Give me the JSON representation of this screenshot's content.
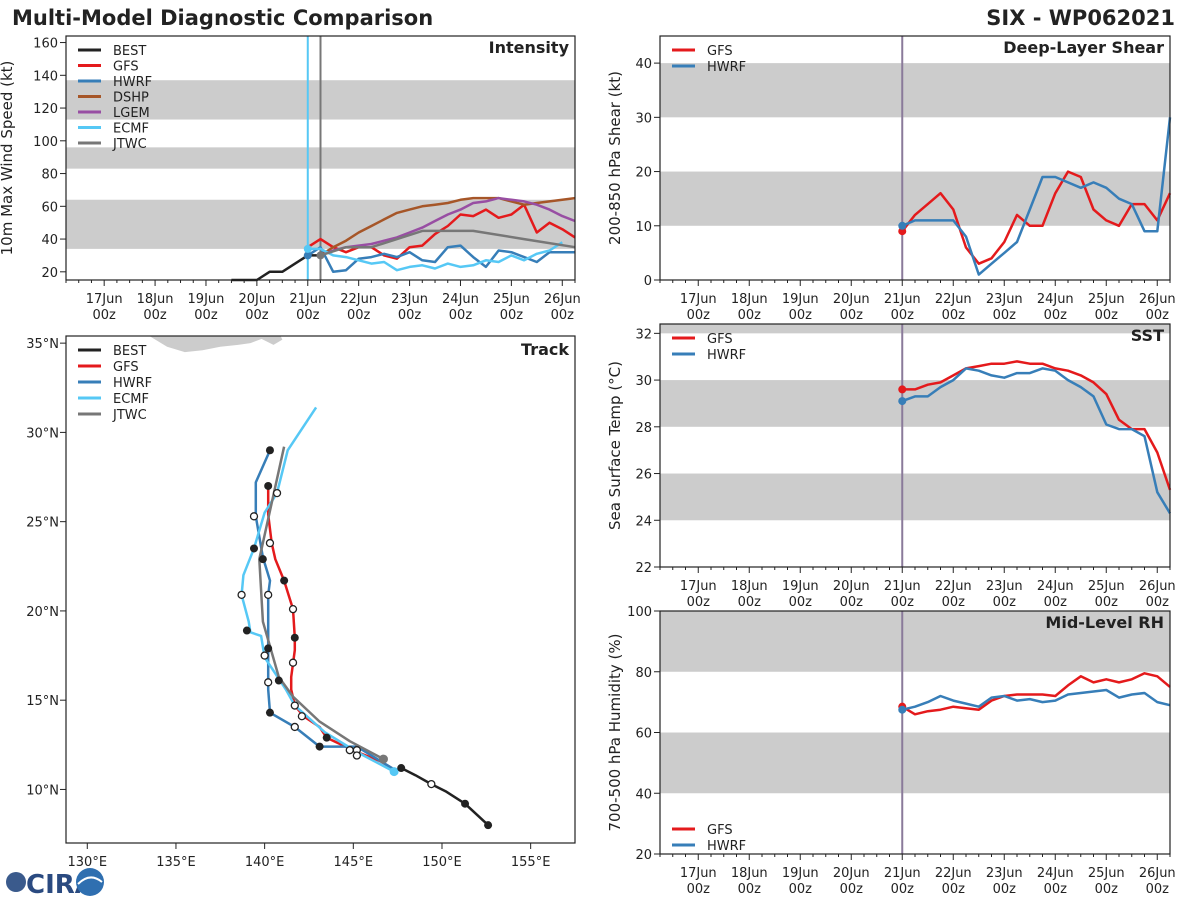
{
  "header": {
    "title": "Multi-Model Diagnostic Comparison",
    "storm": "SIX - WP062021"
  },
  "colors": {
    "BEST": "#222222",
    "GFS": "#e41a1c",
    "HWRF": "#377eb8",
    "DSHP": "#a65628",
    "LGEM": "#984ea3",
    "ECMF": "#56c8f5",
    "JTWC": "#777777",
    "band": "#cccccc",
    "init_line": "#8a7a9a"
  },
  "logo": {
    "text": "CIRA"
  },
  "chart_data": [
    {
      "id": "intensity",
      "type": "line",
      "title": "Intensity",
      "ylabel": "10m Max Wind Speed (kt)",
      "ylim": [
        15,
        164
      ],
      "yticks": [
        20,
        40,
        60,
        80,
        100,
        120,
        140,
        160
      ],
      "xlim": [
        "16Jun 06z",
        "26Jun 06z"
      ],
      "xticks": [
        "17Jun 00z",
        "18Jun 00z",
        "19Jun 00z",
        "20Jun 00z",
        "21Jun 00z",
        "22Jun 00z",
        "23Jun 00z",
        "24Jun 00z",
        "25Jun 00z",
        "26Jun 00z"
      ],
      "bands": [
        [
          34,
          64
        ],
        [
          83,
          96
        ],
        [
          113,
          137
        ]
      ],
      "vlines": [
        {
          "x": "21Jun 00z",
          "color": "ECMF"
        },
        {
          "x": "21Jun 06z",
          "color": "JTWC"
        }
      ],
      "legend": "top-left",
      "series": [
        {
          "name": "BEST",
          "x": [
            "19Jun 12z",
            "19Jun 18z",
            "20Jun 00z",
            "20Jun 06z",
            "20Jun 12z",
            "20Jun 18z",
            "21Jun 00z",
            "21Jun 06z"
          ],
          "values": [
            15,
            15,
            15,
            20,
            20,
            25,
            30,
            30
          ]
        },
        {
          "name": "GFS",
          "x": "forecast",
          "values": [
            35,
            40,
            35,
            32,
            35,
            35,
            30,
            28,
            35,
            36,
            43,
            48,
            55,
            54,
            58,
            53,
            55,
            61,
            44,
            50,
            46,
            41
          ]
        },
        {
          "name": "HWRF",
          "x": "forecast",
          "values": [
            30,
            35,
            20,
            21,
            28,
            29,
            31,
            29,
            32,
            27,
            26,
            35,
            36,
            29,
            23,
            33,
            32,
            29,
            26,
            32,
            32,
            32
          ],
          "start_marker": true
        },
        {
          "name": "DSHP",
          "x": "forecast_from_06",
          "values": [
            30,
            35,
            39,
            44,
            48,
            52,
            56,
            58,
            60,
            61,
            62,
            64,
            65,
            65,
            65,
            63,
            61,
            62,
            63,
            64,
            65
          ]
        },
        {
          "name": "LGEM",
          "x": "forecast_from_06",
          "values": [
            30,
            33,
            35,
            36,
            37,
            39,
            41,
            44,
            47,
            51,
            55,
            58,
            62,
            63,
            65,
            64,
            63,
            61,
            58,
            54,
            51
          ]
        },
        {
          "name": "ECMF",
          "x": "forecast",
          "values": [
            34,
            34,
            30,
            29,
            27,
            25,
            26,
            21,
            23,
            24,
            22,
            25,
            23,
            24,
            27,
            26,
            30,
            27,
            31,
            33,
            38
          ],
          "start_marker": true
        },
        {
          "name": "JTWC",
          "x": [
            "21Jun 06z",
            "21Jun 18z",
            "22Jun 06z",
            "23Jun 06z",
            "24Jun 06z",
            "25Jun 06z",
            "26Jun 06z"
          ],
          "values": [
            30,
            35,
            35,
            45,
            45,
            40,
            35
          ],
          "start_marker": true
        }
      ]
    },
    {
      "id": "shear",
      "type": "line",
      "title": "Deep-Layer Shear",
      "ylabel": "200-850 hPa Shear (kt)",
      "ylim": [
        0,
        45
      ],
      "yticks": [
        0,
        10,
        20,
        30,
        40
      ],
      "xlim": [
        "16Jun 06z",
        "26Jun 06z"
      ],
      "xticks": [
        "17Jun 00z",
        "18Jun 00z",
        "19Jun 00z",
        "20Jun 00z",
        "21Jun 00z",
        "22Jun 00z",
        "23Jun 00z",
        "24Jun 00z",
        "25Jun 00z",
        "26Jun 00z"
      ],
      "bands": [
        [
          10,
          20
        ],
        [
          30,
          40
        ]
      ],
      "vlines": [
        {
          "x": "21Jun 00z",
          "color": "init_line"
        }
      ],
      "legend": "top-left",
      "series": [
        {
          "name": "GFS",
          "x": "forecast",
          "values": [
            9,
            12,
            14,
            16,
            13,
            6,
            3,
            4,
            7,
            12,
            10,
            10,
            16,
            20,
            19,
            13,
            11,
            10,
            14,
            14,
            11,
            16
          ],
          "start_marker": true
        },
        {
          "name": "HWRF",
          "x": "forecast",
          "values": [
            10,
            11,
            11,
            11,
            11,
            8,
            1,
            3,
            5,
            7,
            13,
            19,
            19,
            18,
            17,
            18,
            17,
            15,
            14,
            9,
            9,
            30
          ],
          "start_marker": true
        }
      ]
    },
    {
      "id": "sst",
      "type": "line",
      "title": "SST",
      "ylabel": "Sea Surface Temp (°C)",
      "ylim": [
        22,
        32.4
      ],
      "yticks": [
        22,
        24,
        26,
        28,
        30,
        32
      ],
      "xlim": [
        "16Jun 06z",
        "26Jun 06z"
      ],
      "xticks": [
        "17Jun 00z",
        "18Jun 00z",
        "19Jun 00z",
        "20Jun 00z",
        "21Jun 00z",
        "22Jun 00z",
        "23Jun 00z",
        "24Jun 00z",
        "25Jun 00z",
        "26Jun 00z"
      ],
      "bands": [
        [
          24,
          26
        ],
        [
          28,
          30
        ],
        [
          32,
          32.4
        ]
      ],
      "vlines": [
        {
          "x": "21Jun 00z",
          "color": "init_line"
        }
      ],
      "legend": "top-left",
      "series": [
        {
          "name": "GFS",
          "x": "forecast",
          "values": [
            29.6,
            29.6,
            29.8,
            29.9,
            30.2,
            30.5,
            30.6,
            30.7,
            30.7,
            30.8,
            30.7,
            30.7,
            30.5,
            30.4,
            30.2,
            29.9,
            29.4,
            28.3,
            27.9,
            27.9,
            26.9,
            25.3
          ],
          "start_marker": true
        },
        {
          "name": "HWRF",
          "x": "forecast",
          "values": [
            29.1,
            29.3,
            29.3,
            29.7,
            30.0,
            30.5,
            30.4,
            30.2,
            30.1,
            30.3,
            30.3,
            30.5,
            30.4,
            30.0,
            29.7,
            29.3,
            28.1,
            27.9,
            27.9,
            27.6,
            25.2,
            24.3
          ],
          "start_marker": true
        }
      ]
    },
    {
      "id": "rh",
      "type": "line",
      "title": "Mid-Level RH",
      "ylabel": "700-500 hPa Humidity (%)",
      "ylim": [
        20,
        100
      ],
      "yticks": [
        20,
        40,
        60,
        80,
        100
      ],
      "xlim": [
        "16Jun 06z",
        "26Jun 06z"
      ],
      "xticks": [
        "17Jun 00z",
        "18Jun 00z",
        "19Jun 00z",
        "20Jun 00z",
        "21Jun 00z",
        "22Jun 00z",
        "23Jun 00z",
        "24Jun 00z",
        "25Jun 00z",
        "26Jun 00z"
      ],
      "bands": [
        [
          40,
          60
        ],
        [
          80,
          100
        ]
      ],
      "vlines": [
        {
          "x": "21Jun 00z",
          "color": "init_line"
        }
      ],
      "legend": "bottom-left",
      "series": [
        {
          "name": "GFS",
          "x": "forecast",
          "values": [
            68.5,
            66,
            67,
            67.5,
            68.5,
            68,
            67.5,
            70.5,
            72,
            72.5,
            72.5,
            72.5,
            72,
            75.5,
            78.5,
            76.5,
            77.5,
            76.5,
            77.5,
            79.5,
            78.5,
            75
          ],
          "start_marker": true
        },
        {
          "name": "HWRF",
          "x": "forecast",
          "values": [
            67.5,
            68.5,
            70,
            72,
            70.5,
            69.5,
            68.5,
            71.5,
            72,
            70.5,
            71,
            70,
            70.5,
            72.5,
            73,
            73.5,
            74,
            71.5,
            72.5,
            73,
            70,
            69
          ],
          "start_marker": true
        }
      ]
    },
    {
      "id": "track",
      "type": "map-track",
      "title": "Track",
      "xlim": [
        128.8,
        157.5
      ],
      "ylim": [
        7.0,
        35.4
      ],
      "xticks": [
        130,
        135,
        140,
        145,
        150,
        155
      ],
      "xtick_labels": [
        "130°E",
        "135°E",
        "140°E",
        "145°E",
        "150°E",
        "155°E"
      ],
      "yticks": [
        10,
        15,
        20,
        25,
        30,
        35
      ],
      "ytick_labels": [
        "10°N",
        "15°N",
        "20°N",
        "25°N",
        "30°N",
        "35°N"
      ],
      "legend": "top-left",
      "series": [
        {
          "name": "BEST",
          "lon": [
            152.6,
            151.3,
            150.2,
            149.4,
            148.5,
            147.7
          ],
          "lat": [
            8.0,
            9.2,
            9.9,
            10.3,
            10.8,
            11.2
          ]
        },
        {
          "name": "GFS",
          "lon": [
            147.5,
            146.5,
            145.2,
            143.5,
            143.1,
            142.2,
            141.7,
            141.5,
            141.5,
            141.7,
            141.7,
            141.6,
            141.1,
            140.6,
            140.4,
            140.2,
            140.2
          ],
          "lat": [
            11.0,
            11.6,
            12.1,
            12.9,
            13.5,
            14.1,
            14.7,
            15.6,
            16.3,
            17.8,
            18.5,
            20.1,
            21.7,
            22.9,
            23.8,
            25.4,
            27.1
          ]
        },
        {
          "name": "HWRF",
          "lon": [
            147.5,
            145.2,
            143.1,
            141.7,
            140.3,
            140.2,
            140.2,
            140.2,
            140.3,
            139.9,
            139.5,
            139.5,
            140.3
          ],
          "lat": [
            11.0,
            12.4,
            12.4,
            13.5,
            14.3,
            15.6,
            17.9,
            20.9,
            21.7,
            23.0,
            25.3,
            27.2,
            29.0
          ]
        },
        {
          "name": "ECMF",
          "lon": [
            147.3,
            145.2,
            143.4,
            141.7,
            141.2,
            140.0,
            139.8,
            139.2,
            139.1,
            138.7,
            138.8,
            139.4,
            140.0,
            140.7,
            141.3,
            142.9
          ],
          "lat": [
            11.0,
            12.1,
            13.2,
            14.7,
            15.6,
            17.4,
            18.6,
            18.8,
            19.4,
            20.9,
            22.0,
            23.5,
            25.5,
            26.6,
            29.0,
            31.4
          ],
          "start_marker": true
        },
        {
          "name": "JTWC",
          "lon": [
            146.7,
            144.8,
            143.1,
            141.6,
            140.8,
            139.9,
            139.7,
            141.1
          ],
          "lat": [
            11.7,
            12.7,
            13.8,
            15.2,
            16.3,
            19.4,
            22.9,
            29.2
          ],
          "start_marker": true
        }
      ],
      "markers_filled": [
        [
          140.3,
          29.0
        ],
        [
          140.2,
          27.0
        ],
        [
          139.4,
          23.5
        ],
        [
          139.9,
          22.9
        ],
        [
          141.1,
          21.7
        ],
        [
          141.7,
          18.5
        ],
        [
          139.0,
          18.9
        ],
        [
          140.2,
          17.9
        ],
        [
          140.8,
          16.1
        ],
        [
          140.3,
          14.3
        ],
        [
          143.1,
          12.4
        ],
        [
          143.5,
          12.9
        ],
        [
          147.7,
          11.2
        ],
        [
          151.3,
          9.2
        ],
        [
          152.6,
          8.0
        ]
      ],
      "markers_open": [
        [
          140.7,
          26.6
        ],
        [
          139.4,
          25.3
        ],
        [
          140.3,
          23.8
        ],
        [
          140.2,
          20.9
        ],
        [
          138.7,
          20.9
        ],
        [
          141.6,
          20.1
        ],
        [
          141.6,
          17.1
        ],
        [
          140.0,
          17.5
        ],
        [
          140.2,
          16.0
        ],
        [
          141.7,
          14.7
        ],
        [
          142.1,
          14.1
        ],
        [
          141.7,
          13.5
        ],
        [
          144.8,
          12.2
        ],
        [
          145.2,
          12.2
        ],
        [
          145.2,
          11.9
        ],
        [
          149.4,
          10.3
        ]
      ]
    }
  ]
}
